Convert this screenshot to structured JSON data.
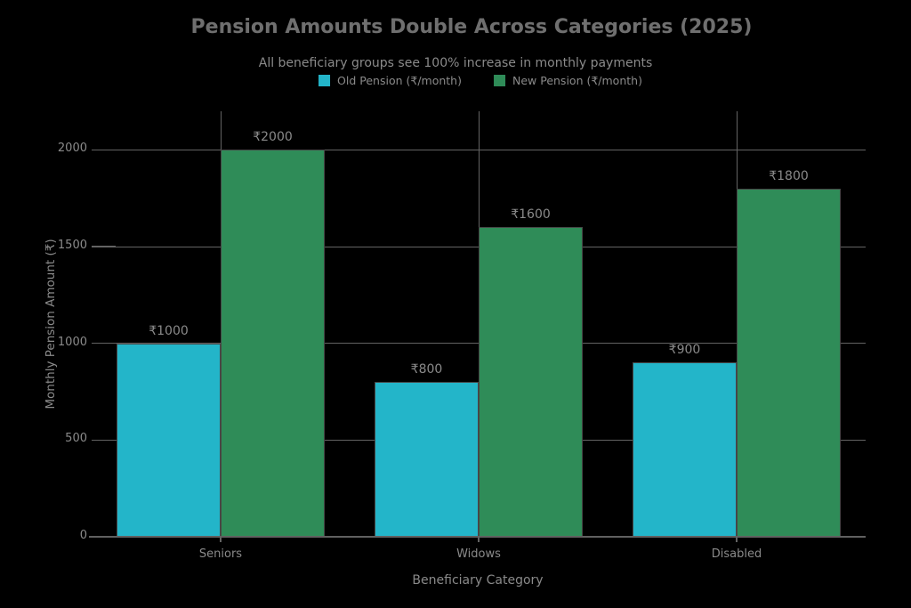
{
  "colors": {
    "background": "#000000",
    "title_text": "#6f6f6f",
    "muted_text": "#8a8a8a",
    "grid": "#636363",
    "axis": "#606060",
    "bar_edge": "#464646",
    "old_pension": "#23b5c9",
    "new_pension": "#2f8c58"
  },
  "chart_data": {
    "type": "bar",
    "title": "Pension Amounts Double Across Categories (2025)",
    "subtitle": "All beneficiary groups see 100% increase in monthly payments",
    "xlabel": "Beneficiary Category",
    "ylabel": "Monthly Pension Amount (₹)",
    "categories": [
      "Seniors",
      "Widows",
      "Disabled"
    ],
    "series": [
      {
        "name": "Old Pension (₹/month)",
        "color": "#23b5c9",
        "values": [
          1000,
          800,
          900
        ],
        "value_labels": [
          "₹1000",
          "₹800",
          "₹900"
        ]
      },
      {
        "name": "New Pension (₹/month)",
        "color": "#2f8c58",
        "values": [
          2000,
          1600,
          1800
        ],
        "value_labels": [
          "₹2000",
          "₹1600",
          "₹1800"
        ]
      }
    ],
    "y_ticks": [
      0,
      500,
      1000,
      1500,
      2000
    ],
    "y_tick_labels": [
      "0",
      "500",
      "1000",
      "1500",
      "2000"
    ],
    "ylim": [
      0,
      2200
    ],
    "grid": "horizontal gridlines at y ticks, vertical gridlines at category centers",
    "legend_position": "top-center"
  }
}
